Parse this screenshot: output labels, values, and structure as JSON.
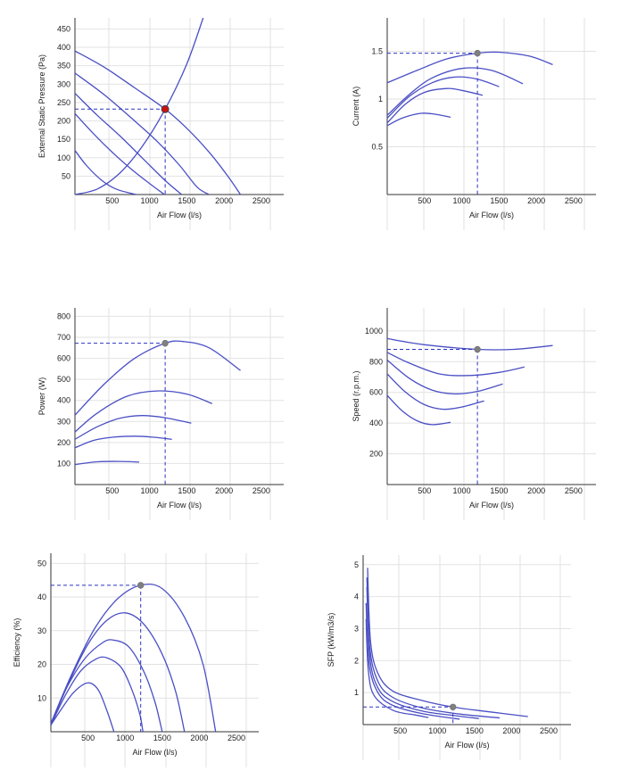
{
  "colors": {
    "curve": "#4a4fc4",
    "guide": "#2b33c0",
    "operating_point_main": "#cc1111",
    "operating_point": "#808080",
    "grid": "#e2e2e2"
  },
  "chart_data": [
    {
      "id": "pressure",
      "type": "line",
      "xlabel": "Air Flow (l/s)",
      "ylabel": "External Static Pressure (Pa)",
      "xlim": [
        0,
        2800
      ],
      "ylim": [
        0,
        480
      ],
      "xticks": [
        500,
        1000,
        1500,
        2000,
        2500
      ],
      "yticks": [
        50,
        100,
        150,
        200,
        250,
        300,
        350,
        400,
        450
      ],
      "operating_point": {
        "x": 1210,
        "y": 232
      },
      "series": [
        {
          "values": [
            [
              0,
              390
            ],
            [
              400,
              345
            ],
            [
              800,
              290
            ],
            [
              1210,
              232
            ],
            [
              1500,
              180
            ],
            [
              1800,
              115
            ],
            [
              2050,
              50
            ],
            [
              2220,
              0
            ]
          ]
        },
        {
          "values": [
            [
              0,
              330
            ],
            [
              400,
              270
            ],
            [
              800,
              200
            ],
            [
              1100,
              145
            ],
            [
              1400,
              80
            ],
            [
              1640,
              20
            ],
            [
              1800,
              0
            ]
          ]
        },
        {
          "values": [
            [
              0,
              275
            ],
            [
              300,
              215
            ],
            [
              600,
              160
            ],
            [
              900,
              100
            ],
            [
              1200,
              40
            ],
            [
              1430,
              0
            ]
          ]
        },
        {
          "values": [
            [
              0,
              220
            ],
            [
              250,
              165
            ],
            [
              500,
              115
            ],
            [
              750,
              70
            ],
            [
              1000,
              30
            ],
            [
              1200,
              0
            ]
          ]
        },
        {
          "values": [
            [
              0,
              120
            ],
            [
              150,
              80
            ],
            [
              350,
              40
            ],
            [
              550,
              15
            ],
            [
              820,
              0
            ]
          ]
        }
      ],
      "system_curve": {
        "values": [
          [
            0,
            0
          ],
          [
            300,
            15
          ],
          [
            600,
            58
          ],
          [
            900,
            130
          ],
          [
            1210,
            232
          ],
          [
            1500,
            355
          ],
          [
            1720,
            480
          ]
        ]
      }
    },
    {
      "id": "current",
      "type": "line",
      "xlabel": "Air Flow (l/s)",
      "ylabel": "Current (A)",
      "xlim": [
        0,
        2800
      ],
      "ylim": [
        0,
        1.85
      ],
      "xticks": [
        500,
        1000,
        1500,
        2000,
        2500
      ],
      "yticks": [
        0.5,
        1,
        1.5
      ],
      "ytick_labels": [
        "0.5",
        "1",
        "1.5"
      ],
      "operating_point": {
        "x": 1210,
        "y": 1.48
      },
      "series": [
        {
          "values": [
            [
              0,
              1.17
            ],
            [
              400,
              1.3
            ],
            [
              800,
              1.42
            ],
            [
              1210,
              1.48
            ],
            [
              1500,
              1.49
            ],
            [
              1900,
              1.45
            ],
            [
              2220,
              1.36
            ]
          ]
        },
        {
          "values": [
            [
              0,
              0.83
            ],
            [
              300,
              1.05
            ],
            [
              600,
              1.22
            ],
            [
              1000,
              1.32
            ],
            [
              1400,
              1.3
            ],
            [
              1820,
              1.16
            ]
          ]
        },
        {
          "values": [
            [
              0,
              0.8
            ],
            [
              300,
              1.03
            ],
            [
              600,
              1.17
            ],
            [
              900,
              1.23
            ],
            [
              1200,
              1.21
            ],
            [
              1500,
              1.13
            ]
          ]
        },
        {
          "values": [
            [
              0,
              0.75
            ],
            [
              250,
              0.95
            ],
            [
              500,
              1.07
            ],
            [
              800,
              1.11
            ],
            [
              1000,
              1.09
            ],
            [
              1280,
              1.04
            ]
          ]
        },
        {
          "values": [
            [
              0,
              0.72
            ],
            [
              200,
              0.8
            ],
            [
              450,
              0.85
            ],
            [
              650,
              0.84
            ],
            [
              850,
              0.81
            ]
          ]
        }
      ]
    },
    {
      "id": "power",
      "type": "line",
      "xlabel": "Air Flow (l/s)",
      "ylabel": "Power (W)",
      "xlim": [
        0,
        2800
      ],
      "ylim": [
        0,
        840
      ],
      "xticks": [
        500,
        1000,
        1500,
        2000,
        2500
      ],
      "yticks": [
        100,
        200,
        300,
        400,
        500,
        600,
        700,
        800
      ],
      "operating_point": {
        "x": 1210,
        "y": 672
      },
      "series": [
        {
          "values": [
            [
              0,
              330
            ],
            [
              400,
              480
            ],
            [
              800,
              600
            ],
            [
              1210,
              672
            ],
            [
              1450,
              680
            ],
            [
              1800,
              650
            ],
            [
              2220,
              542
            ]
          ]
        },
        {
          "values": [
            [
              0,
              250
            ],
            [
              300,
              340
            ],
            [
              700,
              420
            ],
            [
              1100,
              445
            ],
            [
              1500,
              430
            ],
            [
              1840,
              385
            ]
          ]
        },
        {
          "values": [
            [
              0,
              215
            ],
            [
              300,
              275
            ],
            [
              600,
              315
            ],
            [
              900,
              328
            ],
            [
              1200,
              318
            ],
            [
              1560,
              292
            ]
          ]
        },
        {
          "values": [
            [
              0,
              175
            ],
            [
              250,
              210
            ],
            [
              500,
              225
            ],
            [
              800,
              230
            ],
            [
              1060,
              225
            ],
            [
              1300,
              215
            ]
          ]
        },
        {
          "values": [
            [
              0,
              95
            ],
            [
              300,
              108
            ],
            [
              600,
              110
            ],
            [
              860,
              107
            ]
          ]
        }
      ]
    },
    {
      "id": "speed",
      "type": "line",
      "xlabel": "Air Flow (l/s)",
      "ylabel": "Speed (r.p.m.)",
      "xlim": [
        0,
        2800
      ],
      "ylim": [
        0,
        1150
      ],
      "xticks": [
        500,
        1000,
        1500,
        2000,
        2500
      ],
      "yticks": [
        200,
        400,
        600,
        800,
        1000
      ],
      "operating_point": {
        "x": 1210,
        "y": 880
      },
      "series": [
        {
          "values": [
            [
              0,
              950
            ],
            [
              500,
              910
            ],
            [
              1210,
              880
            ],
            [
              1700,
              880
            ],
            [
              2220,
              905
            ]
          ]
        },
        {
          "values": [
            [
              0,
              860
            ],
            [
              300,
              790
            ],
            [
              700,
              720
            ],
            [
              1100,
              710
            ],
            [
              1500,
              730
            ],
            [
              1840,
              765
            ]
          ]
        },
        {
          "values": [
            [
              0,
              810
            ],
            [
              300,
              690
            ],
            [
              600,
              615
            ],
            [
              900,
              590
            ],
            [
              1200,
              605
            ],
            [
              1550,
              655
            ]
          ]
        },
        {
          "values": [
            [
              0,
              720
            ],
            [
              250,
              600
            ],
            [
              500,
              520
            ],
            [
              750,
              490
            ],
            [
              1000,
              505
            ],
            [
              1300,
              545
            ]
          ]
        },
        {
          "values": [
            [
              0,
              580
            ],
            [
              200,
              480
            ],
            [
              400,
              415
            ],
            [
              600,
              390
            ],
            [
              850,
              405
            ]
          ]
        }
      ]
    },
    {
      "id": "efficiency",
      "type": "line",
      "xlabel": "Air Flow (l/s)",
      "ylabel": "Efficiency (%)",
      "xlim": [
        0,
        2800
      ],
      "ylim": [
        0,
        53
      ],
      "xticks": [
        500,
        1000,
        1500,
        2000,
        2500
      ],
      "yticks": [
        10,
        20,
        30,
        40,
        50
      ],
      "operating_point": {
        "x": 1210,
        "y": 43.5
      },
      "series": [
        {
          "values": [
            [
              0,
              2.5
            ],
            [
              300,
              18
            ],
            [
              600,
              31
            ],
            [
              900,
              39.5
            ],
            [
              1210,
              43.5
            ],
            [
              1500,
              42.5
            ],
            [
              1800,
              34
            ],
            [
              2050,
              20
            ],
            [
              2220,
              0
            ]
          ]
        },
        {
          "values": [
            [
              0,
              2
            ],
            [
              250,
              15
            ],
            [
              500,
              26
            ],
            [
              750,
              33
            ],
            [
              1000,
              35.3
            ],
            [
              1250,
              32
            ],
            [
              1500,
              23
            ],
            [
              1680,
              12
            ],
            [
              1800,
              0
            ]
          ]
        },
        {
          "values": [
            [
              0,
              2
            ],
            [
              200,
              12.5
            ],
            [
              450,
              21.5
            ],
            [
              700,
              26.5
            ],
            [
              850,
              27.2
            ],
            [
              1050,
              25.2
            ],
            [
              1250,
              18
            ],
            [
              1400,
              9
            ],
            [
              1500,
              0
            ]
          ]
        },
        {
          "values": [
            [
              0,
              2
            ],
            [
              200,
              11
            ],
            [
              400,
              18
            ],
            [
              600,
              21.5
            ],
            [
              750,
              22
            ],
            [
              950,
              19
            ],
            [
              1100,
              12
            ],
            [
              1200,
              5
            ],
            [
              1240,
              0
            ]
          ]
        },
        {
          "values": [
            [
              0,
              2
            ],
            [
              150,
              7
            ],
            [
              300,
              11.5
            ],
            [
              450,
              14.2
            ],
            [
              550,
              14.3
            ],
            [
              650,
              12
            ],
            [
              760,
              6
            ],
            [
              850,
              0
            ]
          ]
        }
      ]
    },
    {
      "id": "sfp",
      "type": "line",
      "xlabel": "Air Flow (l/s)",
      "ylabel": "SFP (kW/m3/s)",
      "xlim": [
        0,
        2800
      ],
      "ylim": [
        0,
        5.3
      ],
      "xticks": [
        500,
        1000,
        1500,
        2000,
        2500
      ],
      "yticks": [
        1,
        2,
        3,
        4,
        5
      ],
      "operating_point": {
        "x": 1210,
        "y": 0.55
      },
      "series": [
        {
          "values": [
            [
              60,
              4.9
            ],
            [
              100,
              2.6
            ],
            [
              200,
              1.6
            ],
            [
              400,
              1.05
            ],
            [
              800,
              0.75
            ],
            [
              1210,
              0.55
            ],
            [
              1700,
              0.4
            ],
            [
              2220,
              0.25
            ]
          ]
        },
        {
          "values": [
            [
              50,
              4.6
            ],
            [
              90,
              2.4
            ],
            [
              200,
              1.35
            ],
            [
              400,
              0.85
            ],
            [
              800,
              0.52
            ],
            [
              1300,
              0.33
            ],
            [
              1840,
              0.21
            ]
          ]
        },
        {
          "values": [
            [
              50,
              4.3
            ],
            [
              90,
              2.1
            ],
            [
              200,
              1.15
            ],
            [
              400,
              0.72
            ],
            [
              800,
              0.42
            ],
            [
              1200,
              0.29
            ],
            [
              1560,
              0.19
            ]
          ]
        },
        {
          "values": [
            [
              40,
              3.8
            ],
            [
              80,
              1.9
            ],
            [
              200,
              1.0
            ],
            [
              400,
              0.6
            ],
            [
              800,
              0.34
            ],
            [
              1300,
              0.17
            ]
          ]
        },
        {
          "values": [
            [
              40,
              3.3
            ],
            [
              70,
              1.7
            ],
            [
              150,
              0.9
            ],
            [
              400,
              0.45
            ],
            [
              700,
              0.3
            ],
            [
              880,
              0.22
            ]
          ]
        }
      ]
    }
  ]
}
